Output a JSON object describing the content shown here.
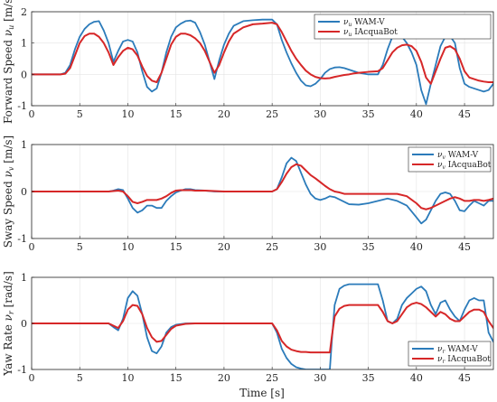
{
  "colors": {
    "wamv": "#2b7bba",
    "iacquabot": "#d62728"
  },
  "xlabel": "Time [s]",
  "chart_data": [
    {
      "type": "line",
      "ylabel": "Forward Speed ν_u [m/s]",
      "ylabel_main": "Forward Speed ",
      "ylabel_sym": "ν",
      "ylabel_sub": "u",
      "ylabel_unit": " [m/s]",
      "xlim": [
        0,
        48
      ],
      "ylim": [
        -1,
        2
      ],
      "xticks": [
        "0",
        "5",
        "10",
        "15",
        "20",
        "25",
        "30",
        "35",
        "40",
        "45"
      ],
      "yticks": [
        "-1",
        "0",
        "1",
        "2"
      ],
      "grid": true,
      "legend_position": "top-right",
      "series": [
        {
          "name": "ν_u WAM-V",
          "name_sym": "ν",
          "name_sub": "u",
          "name_text": " WAM-V",
          "color": "#2b7bba",
          "x": [
            0,
            3,
            3.5,
            4,
            4.5,
            5,
            5.5,
            6,
            6.5,
            7,
            7.5,
            8,
            8.5,
            9,
            9.5,
            10,
            10.5,
            11,
            11.5,
            12,
            12.5,
            13,
            13.5,
            14,
            14.5,
            15,
            15.5,
            16,
            16.5,
            17,
            17.5,
            18,
            18.5,
            19,
            19.5,
            20,
            20.5,
            21,
            22,
            23,
            24,
            25,
            25.5,
            26,
            26.5,
            27,
            27.5,
            28,
            28.5,
            29,
            29.5,
            30,
            30.5,
            31,
            31.5,
            32,
            32.5,
            33,
            33.5,
            34,
            35,
            36,
            36.5,
            37,
            37.5,
            38,
            38.5,
            39,
            39.5,
            40,
            40.5,
            41,
            41.5,
            42,
            42.5,
            43,
            43.5,
            44,
            44.5,
            45,
            45.5,
            46,
            46.5,
            47,
            47.5,
            48
          ],
          "y": [
            0,
            0,
            0.05,
            0.3,
            0.8,
            1.2,
            1.45,
            1.6,
            1.68,
            1.7,
            1.4,
            1.0,
            0.4,
            0.75,
            1.05,
            1.1,
            1.05,
            0.7,
            0.1,
            -0.4,
            -0.55,
            -0.45,
            0.05,
            0.7,
            1.2,
            1.5,
            1.62,
            1.7,
            1.72,
            1.65,
            1.35,
            0.95,
            0.4,
            -0.15,
            0.45,
            0.95,
            1.3,
            1.55,
            1.7,
            1.73,
            1.75,
            1.75,
            1.6,
            1.1,
            0.7,
            0.35,
            0.05,
            -0.2,
            -0.35,
            -0.38,
            -0.3,
            -0.15,
            0.05,
            0.17,
            0.22,
            0.23,
            0.2,
            0.15,
            0.1,
            0.05,
            0.0,
            0.0,
            0.3,
            0.8,
            1.2,
            1.25,
            1.2,
            1.0,
            0.7,
            0.3,
            -0.5,
            -0.95,
            -0.3,
            0.3,
            0.9,
            1.2,
            1.22,
            1.0,
            0.2,
            -0.3,
            -0.4,
            -0.45,
            -0.5,
            -0.55,
            -0.5,
            -0.3
          ]
        },
        {
          "name": "ν_u IAcquaBot",
          "name_sym": "ν",
          "name_sub": "u",
          "name_text": " IAcquaBot",
          "color": "#d62728",
          "x": [
            0,
            3,
            3.5,
            4,
            4.5,
            5,
            5.5,
            6,
            6.5,
            7,
            7.5,
            8,
            8.5,
            9,
            9.5,
            10,
            10.5,
            11,
            11.5,
            12,
            12.5,
            13,
            13.5,
            14,
            14.5,
            15,
            15.5,
            16,
            16.5,
            17,
            17.5,
            18,
            18.5,
            19,
            19.5,
            20,
            20.5,
            21,
            22,
            23,
            24,
            25,
            25.5,
            26,
            26.5,
            27,
            27.5,
            28,
            28.5,
            29,
            29.5,
            30,
            30.5,
            31,
            31.5,
            32,
            32.5,
            33,
            33.5,
            34,
            35,
            36,
            36.5,
            37,
            37.5,
            38,
            38.5,
            39,
            39.5,
            40,
            40.5,
            41,
            41.5,
            42,
            42.5,
            43,
            43.5,
            44,
            44.5,
            45,
            45.5,
            46,
            46.5,
            47,
            47.5,
            48
          ],
          "y": [
            0,
            0,
            0.02,
            0.2,
            0.6,
            1.0,
            1.22,
            1.3,
            1.3,
            1.2,
            1.0,
            0.7,
            0.3,
            0.55,
            0.75,
            0.85,
            0.8,
            0.6,
            0.25,
            -0.05,
            -0.2,
            -0.25,
            0.05,
            0.5,
            0.95,
            1.2,
            1.3,
            1.3,
            1.25,
            1.15,
            1.0,
            0.75,
            0.4,
            0.05,
            0.3,
            0.7,
            1.05,
            1.3,
            1.5,
            1.6,
            1.62,
            1.65,
            1.6,
            1.35,
            1.05,
            0.75,
            0.5,
            0.3,
            0.12,
            0.0,
            -0.08,
            -0.12,
            -0.13,
            -0.12,
            -0.08,
            -0.05,
            -0.02,
            0.0,
            0.03,
            0.05,
            0.08,
            0.1,
            0.2,
            0.45,
            0.7,
            0.85,
            0.93,
            0.95,
            0.9,
            0.75,
            0.4,
            -0.1,
            -0.3,
            0.1,
            0.5,
            0.85,
            0.9,
            0.8,
            0.5,
            0.1,
            -0.1,
            -0.15,
            -0.2,
            -0.23,
            -0.25,
            -0.25
          ]
        }
      ]
    },
    {
      "type": "line",
      "ylabel": "Sway Speed ν_v [m/s]",
      "ylabel_main": "Sway Speed ",
      "ylabel_sym": "ν",
      "ylabel_sub": "v",
      "ylabel_unit": " [m/s]",
      "xlim": [
        0,
        48
      ],
      "ylim": [
        -1,
        1
      ],
      "xticks": [
        "0",
        "5",
        "10",
        "15",
        "20",
        "25",
        "30",
        "35",
        "40",
        "45"
      ],
      "yticks": [
        "-1",
        "0",
        "1"
      ],
      "grid": true,
      "legend_position": "top-right",
      "series": [
        {
          "name": "ν_v WAM-V",
          "name_sym": "ν",
          "name_sub": "v",
          "name_text": " WAM-V",
          "color": "#2b7bba",
          "x": [
            0,
            8,
            8.5,
            9,
            9.5,
            10,
            10.5,
            11,
            11.5,
            12,
            12.5,
            13,
            13.5,
            14,
            14.5,
            15,
            15.5,
            16,
            16.5,
            17,
            18,
            19,
            20,
            21,
            22,
            23,
            24,
            25,
            25.5,
            26,
            26.5,
            27,
            27.5,
            28,
            28.5,
            29,
            29.5,
            30,
            30.5,
            31,
            31.5,
            32,
            32.5,
            33,
            34,
            35,
            36,
            37,
            38,
            39,
            40,
            40.5,
            41,
            41.5,
            42,
            42.5,
            43,
            43.5,
            44,
            44.5,
            45,
            45.5,
            46,
            46.5,
            47,
            47.5,
            48
          ],
          "y": [
            0,
            0,
            0.02,
            0.05,
            0.03,
            -0.15,
            -0.35,
            -0.45,
            -0.4,
            -0.3,
            -0.3,
            -0.35,
            -0.35,
            -0.2,
            -0.1,
            -0.02,
            0.02,
            0.05,
            0.05,
            0.03,
            0.02,
            0.0,
            0.0,
            0.0,
            0.0,
            0.0,
            0.0,
            0.0,
            0.05,
            0.3,
            0.6,
            0.72,
            0.65,
            0.4,
            0.15,
            -0.05,
            -0.15,
            -0.18,
            -0.15,
            -0.1,
            -0.12,
            -0.17,
            -0.22,
            -0.27,
            -0.28,
            -0.25,
            -0.2,
            -0.15,
            -0.2,
            -0.3,
            -0.55,
            -0.68,
            -0.6,
            -0.4,
            -0.2,
            -0.05,
            -0.02,
            -0.05,
            -0.2,
            -0.4,
            -0.42,
            -0.3,
            -0.2,
            -0.25,
            -0.3,
            -0.2,
            -0.2
          ]
        },
        {
          "name": "ν_v IAcquaBot",
          "name_sym": "ν",
          "name_sub": "v",
          "name_text": " IAcquaBot",
          "color": "#d62728",
          "x": [
            0,
            8,
            8.5,
            9,
            9.5,
            10,
            10.5,
            11,
            11.5,
            12,
            12.5,
            13,
            13.5,
            14,
            14.5,
            15,
            15.5,
            16,
            16.5,
            17,
            18,
            19,
            20,
            21,
            22,
            23,
            24,
            25,
            25.5,
            26,
            26.5,
            27,
            27.5,
            28,
            28.5,
            29,
            29.5,
            30,
            30.5,
            31,
            31.5,
            32,
            32.5,
            33,
            34,
            35,
            36,
            37,
            38,
            39,
            40,
            40.5,
            41,
            41.5,
            42,
            42.5,
            43,
            43.5,
            44,
            44.5,
            45,
            45.5,
            46,
            46.5,
            47,
            47.5,
            48
          ],
          "y": [
            0,
            0,
            0.01,
            0.02,
            0.0,
            -0.1,
            -0.22,
            -0.25,
            -0.22,
            -0.18,
            -0.18,
            -0.18,
            -0.15,
            -0.1,
            -0.03,
            0.02,
            0.03,
            0.03,
            0.03,
            0.02,
            0.02,
            0.01,
            0.0,
            0.0,
            0.0,
            0.0,
            0.0,
            0.0,
            0.05,
            0.2,
            0.38,
            0.52,
            0.58,
            0.55,
            0.45,
            0.35,
            0.28,
            0.2,
            0.12,
            0.05,
            0.0,
            -0.02,
            -0.05,
            -0.05,
            -0.05,
            -0.05,
            -0.05,
            -0.05,
            -0.05,
            -0.1,
            -0.25,
            -0.35,
            -0.38,
            -0.35,
            -0.3,
            -0.25,
            -0.2,
            -0.15,
            -0.12,
            -0.15,
            -0.2,
            -0.2,
            -0.18,
            -0.18,
            -0.2,
            -0.18,
            -0.15
          ]
        }
      ]
    },
    {
      "type": "line",
      "ylabel": "Yaw Rate ν_r [rad/s]",
      "ylabel_main": "Yaw Rate ",
      "ylabel_sym": "ν",
      "ylabel_sub": "r",
      "ylabel_unit": " [rad/s]",
      "xlim": [
        0,
        48
      ],
      "ylim": [
        -1,
        1
      ],
      "xticks": [
        "0",
        "5",
        "10",
        "15",
        "20",
        "25",
        "30",
        "35",
        "40",
        "45"
      ],
      "yticks": [
        "-1",
        "0",
        "1"
      ],
      "grid": true,
      "legend_position": "bottom-right",
      "series": [
        {
          "name": "ν_r WAM-V",
          "name_sym": "ν",
          "name_sub": "r",
          "name_text": " WAM-V",
          "color": "#2b7bba",
          "x": [
            0,
            8,
            8.5,
            9,
            9.5,
            10,
            10.5,
            11,
            11.5,
            12,
            12.5,
            13,
            13.5,
            14,
            14.5,
            15,
            16,
            17,
            18,
            20,
            22,
            24,
            25,
            25.5,
            26,
            26.5,
            27,
            27.5,
            28,
            28.5,
            29,
            30,
            31,
            31.2,
            31.5,
            32,
            32.5,
            33,
            33.5,
            34,
            35,
            36,
            36.5,
            37,
            37.5,
            38,
            38.5,
            39,
            39.5,
            40,
            40.5,
            41,
            41.5,
            42,
            42.5,
            43,
            43.5,
            44,
            44.5,
            45,
            45.5,
            46,
            46.5,
            47,
            47.5,
            48
          ],
          "y": [
            0,
            0,
            -0.08,
            -0.15,
            0.1,
            0.55,
            0.7,
            0.6,
            0.2,
            -0.3,
            -0.6,
            -0.65,
            -0.5,
            -0.2,
            -0.08,
            -0.03,
            0.0,
            0.0,
            0.0,
            0.0,
            0.0,
            0.0,
            0.0,
            -0.2,
            -0.55,
            -0.75,
            -0.88,
            -0.95,
            -0.98,
            -1.0,
            -1.0,
            -1.0,
            -1.0,
            -0.4,
            0.4,
            0.75,
            0.82,
            0.85,
            0.85,
            0.85,
            0.85,
            0.85,
            0.5,
            0.05,
            0.0,
            0.1,
            0.4,
            0.55,
            0.65,
            0.75,
            0.8,
            0.7,
            0.4,
            0.2,
            0.45,
            0.5,
            0.3,
            0.15,
            0.05,
            0.3,
            0.5,
            0.55,
            0.5,
            0.5,
            -0.2,
            -0.4
          ]
        },
        {
          "name": "ν_r IAcquaBot",
          "name_sym": "ν",
          "name_sub": "r",
          "name_text": " IAcquaBot",
          "color": "#d62728",
          "x": [
            0,
            8,
            8.5,
            9,
            9.5,
            10,
            10.5,
            11,
            11.5,
            12,
            12.5,
            13,
            13.5,
            14,
            14.5,
            15,
            16,
            17,
            18,
            20,
            22,
            24,
            25,
            25.5,
            26,
            26.5,
            27,
            27.5,
            28,
            28.5,
            29,
            30,
            31,
            31.2,
            31.5,
            32,
            32.5,
            33,
            33.5,
            34,
            35,
            36,
            36.5,
            37,
            37.5,
            38,
            38.5,
            39,
            39.5,
            40,
            40.5,
            41,
            41.5,
            42,
            42.5,
            43,
            43.5,
            44,
            44.5,
            45,
            45.5,
            46,
            46.5,
            47,
            47.5,
            48
          ],
          "y": [
            0,
            0,
            -0.05,
            -0.1,
            0.05,
            0.3,
            0.4,
            0.38,
            0.2,
            -0.1,
            -0.3,
            -0.4,
            -0.38,
            -0.25,
            -0.12,
            -0.05,
            -0.01,
            0.0,
            0.0,
            0.0,
            0.0,
            0.0,
            0.0,
            -0.15,
            -0.38,
            -0.5,
            -0.57,
            -0.6,
            -0.62,
            -0.62,
            -0.63,
            -0.63,
            -0.63,
            -0.3,
            0.15,
            0.32,
            0.38,
            0.4,
            0.4,
            0.4,
            0.4,
            0.4,
            0.25,
            0.05,
            0.0,
            0.05,
            0.2,
            0.35,
            0.42,
            0.45,
            0.42,
            0.35,
            0.25,
            0.15,
            0.25,
            0.2,
            0.1,
            0.05,
            0.05,
            0.15,
            0.25,
            0.3,
            0.3,
            0.25,
            0.05,
            -0.1
          ]
        }
      ]
    }
  ]
}
